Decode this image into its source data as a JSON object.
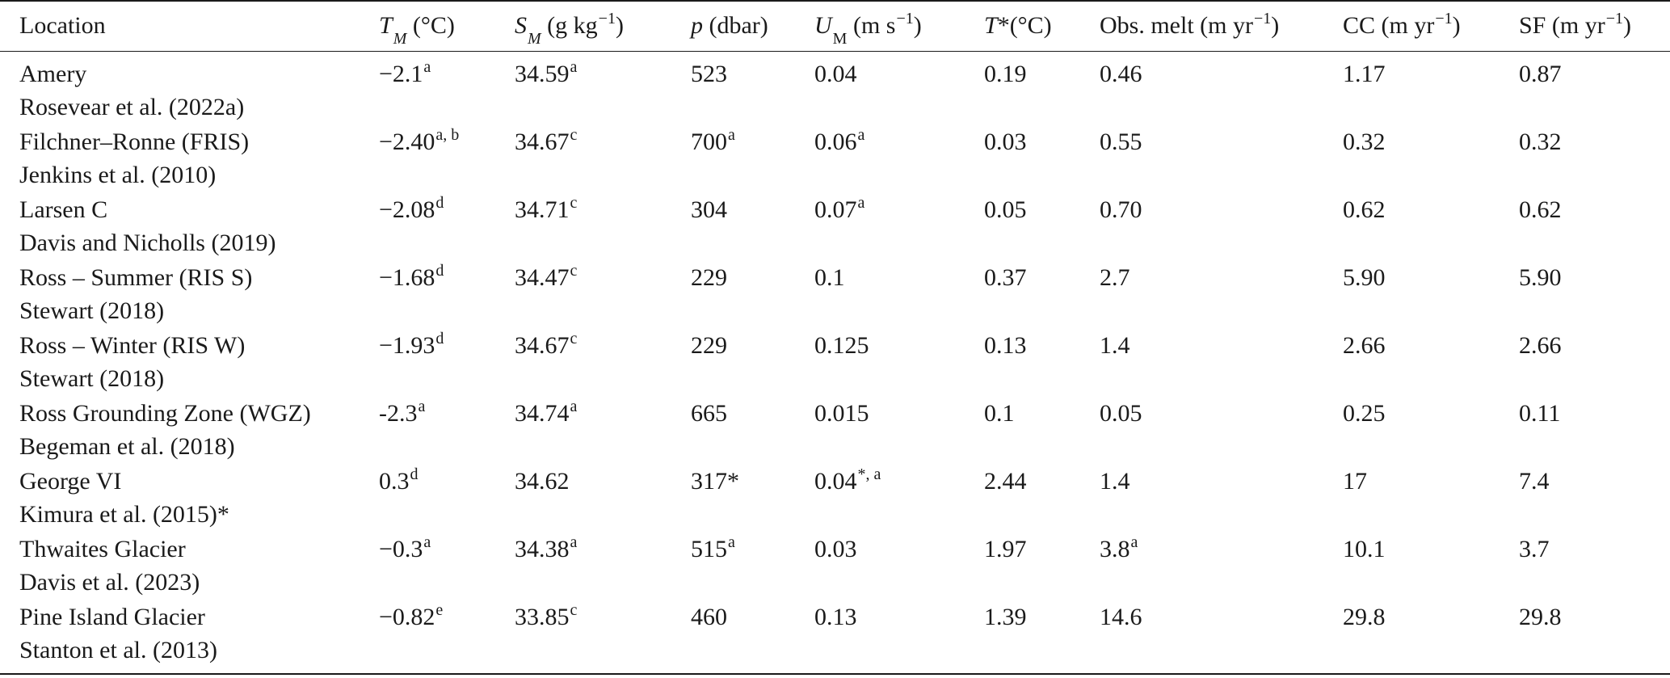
{
  "table": {
    "headers": {
      "location": "Location",
      "tm_sym": "T",
      "tm_sub": "M",
      "tm_unit": " (°C)",
      "sm_sym": "S",
      "sm_sub": "M",
      "sm_unit": " (g kg",
      "sm_exp": "−1",
      "sm_close": ")",
      "p_sym": "p",
      "p_unit": " (dbar)",
      "um_sym": "U",
      "um_sub": "M",
      "um_unit": " (m s",
      "um_exp": "−1",
      "um_close": ")",
      "tstar_sym": "T",
      "tstar_unit": "*(°C)",
      "obs_label": "Obs. melt (m yr",
      "obs_exp": "−1",
      "obs_close": ")",
      "cc_label": "CC (m yr",
      "cc_exp": "−1",
      "cc_close": ")",
      "sf_label": "SF (m yr",
      "sf_exp": "−1",
      "sf_close": ")"
    },
    "rows": [
      {
        "location": "Amery",
        "citation": "Rosevear et al. (2022a)",
        "tm": "−2.1",
        "tm_sup": "a",
        "sm": "34.59",
        "sm_sup": "a",
        "p": "523",
        "p_sup": "",
        "um": "0.04",
        "um_sup": "",
        "tstar": "0.19",
        "obs": "0.46",
        "obs_sup": "",
        "cc": "1.17",
        "sf": "0.87"
      },
      {
        "location": "Filchner–Ronne (FRIS)",
        "citation": "Jenkins et al. (2010)",
        "tm": "−2.40",
        "tm_sup": "a, b",
        "sm": "34.67",
        "sm_sup": "c",
        "p": "700",
        "p_sup": "a",
        "um": "0.06",
        "um_sup": "a",
        "tstar": "0.03",
        "obs": "0.55",
        "obs_sup": "",
        "cc": "0.32",
        "sf": "0.32"
      },
      {
        "location": "Larsen C",
        "citation": "Davis and Nicholls (2019)",
        "tm": "−2.08",
        "tm_sup": "d",
        "sm": "34.71",
        "sm_sup": "c",
        "p": "304",
        "p_sup": "",
        "um": "0.07",
        "um_sup": "a",
        "tstar": "0.05",
        "obs": "0.70",
        "obs_sup": "",
        "cc": "0.62",
        "sf": "0.62"
      },
      {
        "location": "Ross – Summer (RIS S)",
        "citation": "Stewart (2018)",
        "tm": "−1.68",
        "tm_sup": "d",
        "sm": "34.47",
        "sm_sup": "c",
        "p": "229",
        "p_sup": "",
        "um": "0.1",
        "um_sup": "",
        "tstar": "0.37",
        "obs": "2.7",
        "obs_sup": "",
        "cc": "5.90",
        "sf": "5.90"
      },
      {
        "location": "Ross – Winter (RIS W)",
        "citation": "Stewart (2018)",
        "tm": "−1.93",
        "tm_sup": "d",
        "sm": "34.67",
        "sm_sup": "c",
        "p": "229",
        "p_sup": "",
        "um": "0.125",
        "um_sup": "",
        "tstar": "0.13",
        "obs": "1.4",
        "obs_sup": "",
        "cc": "2.66",
        "sf": "2.66"
      },
      {
        "location": "Ross Grounding Zone (WGZ)",
        "citation": "Begeman et al. (2018)",
        "tm": "-2.3",
        "tm_sup": "a",
        "sm": "34.74",
        "sm_sup": "a",
        "p": "665",
        "p_sup": "",
        "um": "0.015",
        "um_sup": "",
        "tstar": "0.1",
        "obs": "0.05",
        "obs_sup": "",
        "cc": "0.25",
        "sf": "0.11"
      },
      {
        "location": "George VI",
        "citation": "Kimura et al. (2015)*",
        "tm": "0.3",
        "tm_sup": "d",
        "sm": "34.62",
        "sm_sup": "",
        "p": "317*",
        "p_sup": "",
        "um": "0.04",
        "um_sup": "*, a",
        "tstar": "2.44",
        "obs": "1.4",
        "obs_sup": "",
        "cc": "17",
        "sf": "7.4"
      },
      {
        "location": "Thwaites Glacier",
        "citation": "Davis et al. (2023)",
        "tm": "−0.3",
        "tm_sup": "a",
        "sm": "34.38",
        "sm_sup": "a",
        "p": "515",
        "p_sup": "a",
        "um": "0.03",
        "um_sup": "",
        "tstar": "1.97",
        "obs": "3.8",
        "obs_sup": "a",
        "cc": "10.1",
        "sf": "3.7"
      },
      {
        "location": "Pine Island Glacier",
        "citation": "Stanton et al. (2013)",
        "tm": "−0.82",
        "tm_sup": "e",
        "sm": "33.85",
        "sm_sup": "c",
        "p": "460",
        "p_sup": "",
        "um": "0.13",
        "um_sup": "",
        "tstar": "1.39",
        "obs": "14.6",
        "obs_sup": "",
        "cc": "29.8",
        "sf": "29.8"
      }
    ]
  }
}
